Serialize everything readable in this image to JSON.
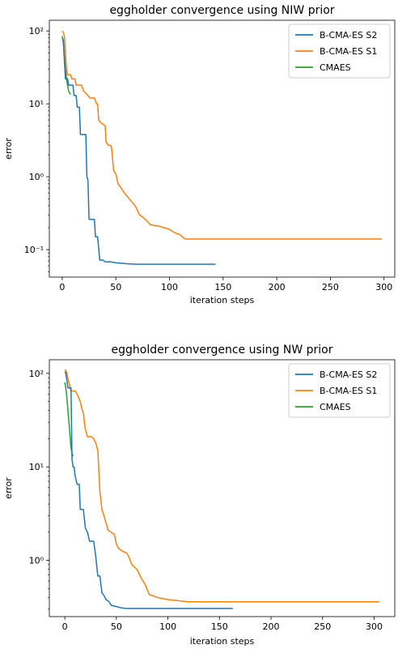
{
  "chart_data": [
    {
      "type": "line",
      "title": "eggholder convergence using NIW prior",
      "xlabel": "iteration steps",
      "ylabel": "error",
      "yscale": "log",
      "xlim": [
        -12,
        310
      ],
      "ylim": [
        0.042,
        140
      ],
      "xticks": [
        0,
        50,
        100,
        150,
        200,
        250,
        300
      ],
      "xtick_labels": [
        "0",
        "50",
        "100",
        "150",
        "200",
        "250",
        "300"
      ],
      "yticks": [
        100,
        10,
        1,
        0.1
      ],
      "ytick_labels": [
        "10²",
        "10¹",
        "10⁰",
        "10⁻¹"
      ],
      "grid": false,
      "legend": "top-right",
      "series": [
        {
          "name": "B-CMA-ES S2",
          "color": "#1f77b4",
          "points": [
            [
              0,
              80
            ],
            [
              1,
              75
            ],
            [
              2,
              40
            ],
            [
              3,
              22
            ],
            [
              5,
              22
            ],
            [
              6,
              18
            ],
            [
              10,
              18
            ],
            [
              11,
              13
            ],
            [
              13,
              13
            ],
            [
              14,
              9
            ],
            [
              16,
              9
            ],
            [
              17,
              3.8
            ],
            [
              22,
              3.8
            ],
            [
              23,
              1.0
            ],
            [
              24,
              0.9
            ],
            [
              25,
              0.26
            ],
            [
              30,
              0.26
            ],
            [
              31,
              0.15
            ],
            [
              33,
              0.15
            ],
            [
              35,
              0.072
            ],
            [
              38,
              0.072
            ],
            [
              40,
              0.068
            ],
            [
              45,
              0.068
            ],
            [
              50,
              0.066
            ],
            [
              55,
              0.065
            ],
            [
              60,
              0.064
            ],
            [
              70,
              0.063
            ],
            [
              100,
              0.063
            ],
            [
              143,
              0.063
            ]
          ]
        },
        {
          "name": "B-CMA-ES S1",
          "color": "#ff7f0e",
          "points": [
            [
              0,
              100
            ],
            [
              1,
              95
            ],
            [
              2,
              85
            ],
            [
              3,
              50
            ],
            [
              4,
              30
            ],
            [
              5,
              25
            ],
            [
              8,
              25
            ],
            [
              9,
              22
            ],
            [
              12,
              22
            ],
            [
              13,
              18
            ],
            [
              18,
              18
            ],
            [
              20,
              15
            ],
            [
              24,
              13
            ],
            [
              26,
              12
            ],
            [
              30,
              12
            ],
            [
              31,
              11
            ],
            [
              32,
              10
            ],
            [
              33,
              10
            ],
            [
              34,
              6
            ],
            [
              36,
              5.5
            ],
            [
              40,
              5
            ],
            [
              41,
              3
            ],
            [
              43,
              2.7
            ],
            [
              45,
              2.7
            ],
            [
              46,
              2.5
            ],
            [
              48,
              1.2
            ],
            [
              50,
              1.1
            ],
            [
              52,
              0.8
            ],
            [
              55,
              0.7
            ],
            [
              58,
              0.6
            ],
            [
              60,
              0.55
            ],
            [
              65,
              0.45
            ],
            [
              68,
              0.4
            ],
            [
              70,
              0.35
            ],
            [
              72,
              0.3
            ],
            [
              75,
              0.28
            ],
            [
              80,
              0.24
            ],
            [
              82,
              0.22
            ],
            [
              90,
              0.21
            ],
            [
              95,
              0.2
            ],
            [
              100,
              0.19
            ],
            [
              105,
              0.17
            ],
            [
              110,
              0.16
            ],
            [
              113,
              0.145
            ],
            [
              115,
              0.14
            ],
            [
              150,
              0.14
            ],
            [
              200,
              0.14
            ],
            [
              250,
              0.14
            ],
            [
              298,
              0.14
            ]
          ]
        },
        {
          "name": "CMAES",
          "color": "#2ca02c",
          "points": [
            [
              0,
              85
            ],
            [
              1,
              70
            ],
            [
              2,
              45
            ],
            [
              3,
              30
            ],
            [
              4,
              22
            ],
            [
              5,
              18
            ],
            [
              6,
              15
            ],
            [
              7,
              14
            ],
            [
              8,
              13.5
            ]
          ]
        }
      ]
    },
    {
      "type": "line",
      "title": "eggholder convergence using NW prior",
      "xlabel": "iteration steps",
      "ylabel": "error",
      "yscale": "log",
      "xlim": [
        -15,
        320
      ],
      "ylim": [
        0.25,
        140
      ],
      "xticks": [
        0,
        50,
        100,
        150,
        200,
        250,
        300
      ],
      "xtick_labels": [
        "0",
        "50",
        "100",
        "150",
        "200",
        "250",
        "300"
      ],
      "yticks": [
        100,
        10,
        1
      ],
      "ytick_labels": [
        "10²",
        "10¹",
        "10⁰"
      ],
      "grid": false,
      "legend": "top-right",
      "series": [
        {
          "name": "B-CMA-ES S2",
          "color": "#1f77b4",
          "points": [
            [
              0,
              105
            ],
            [
              1,
              100
            ],
            [
              2,
              85
            ],
            [
              3,
              70
            ],
            [
              6,
              70
            ],
            [
              7,
              12
            ],
            [
              8,
              10
            ],
            [
              9,
              10
            ],
            [
              10,
              8
            ],
            [
              12,
              6.5
            ],
            [
              14,
              6.5
            ],
            [
              15,
              3.5
            ],
            [
              18,
              3.5
            ],
            [
              20,
              2.2
            ],
            [
              22,
              2
            ],
            [
              24,
              1.6
            ],
            [
              28,
              1.6
            ],
            [
              30,
              1.1
            ],
            [
              32,
              0.68
            ],
            [
              34,
              0.68
            ],
            [
              36,
              0.45
            ],
            [
              38,
              0.42
            ],
            [
              40,
              0.38
            ],
            [
              43,
              0.36
            ],
            [
              45,
              0.33
            ],
            [
              50,
              0.32
            ],
            [
              55,
              0.31
            ],
            [
              60,
              0.305
            ],
            [
              100,
              0.305
            ],
            [
              163,
              0.305
            ]
          ]
        },
        {
          "name": "B-CMA-ES S1",
          "color": "#ff7f0e",
          "points": [
            [
              0,
              110
            ],
            [
              1,
              108
            ],
            [
              2,
              100
            ],
            [
              4,
              80
            ],
            [
              6,
              65
            ],
            [
              10,
              65
            ],
            [
              12,
              60
            ],
            [
              15,
              50
            ],
            [
              17,
              40
            ],
            [
              18,
              38
            ],
            [
              19,
              30
            ],
            [
              20,
              25
            ],
            [
              22,
              21
            ],
            [
              26,
              21
            ],
            [
              28,
              20
            ],
            [
              30,
              18
            ],
            [
              32,
              15
            ],
            [
              34,
              5.5
            ],
            [
              36,
              3.5
            ],
            [
              38,
              3
            ],
            [
              40,
              2.5
            ],
            [
              42,
              2.1
            ],
            [
              45,
              2.0
            ],
            [
              48,
              1.9
            ],
            [
              50,
              1.5
            ],
            [
              52,
              1.35
            ],
            [
              56,
              1.25
            ],
            [
              60,
              1.2
            ],
            [
              62,
              1.1
            ],
            [
              65,
              0.9
            ],
            [
              70,
              0.8
            ],
            [
              74,
              0.65
            ],
            [
              78,
              0.55
            ],
            [
              80,
              0.48
            ],
            [
              82,
              0.43
            ],
            [
              85,
              0.42
            ],
            [
              90,
              0.4
            ],
            [
              95,
              0.39
            ],
            [
              100,
              0.38
            ],
            [
              110,
              0.37
            ],
            [
              120,
              0.36
            ],
            [
              150,
              0.36
            ],
            [
              200,
              0.36
            ],
            [
              250,
              0.36
            ],
            [
              305,
              0.36
            ]
          ]
        },
        {
          "name": "CMAES",
          "color": "#2ca02c",
          "points": [
            [
              0,
              80
            ],
            [
              1,
              70
            ],
            [
              2,
              55
            ],
            [
              3,
              40
            ],
            [
              4,
              30
            ],
            [
              5,
              22
            ],
            [
              6,
              16
            ],
            [
              7,
              14
            ],
            [
              8,
              13
            ]
          ]
        }
      ]
    }
  ]
}
